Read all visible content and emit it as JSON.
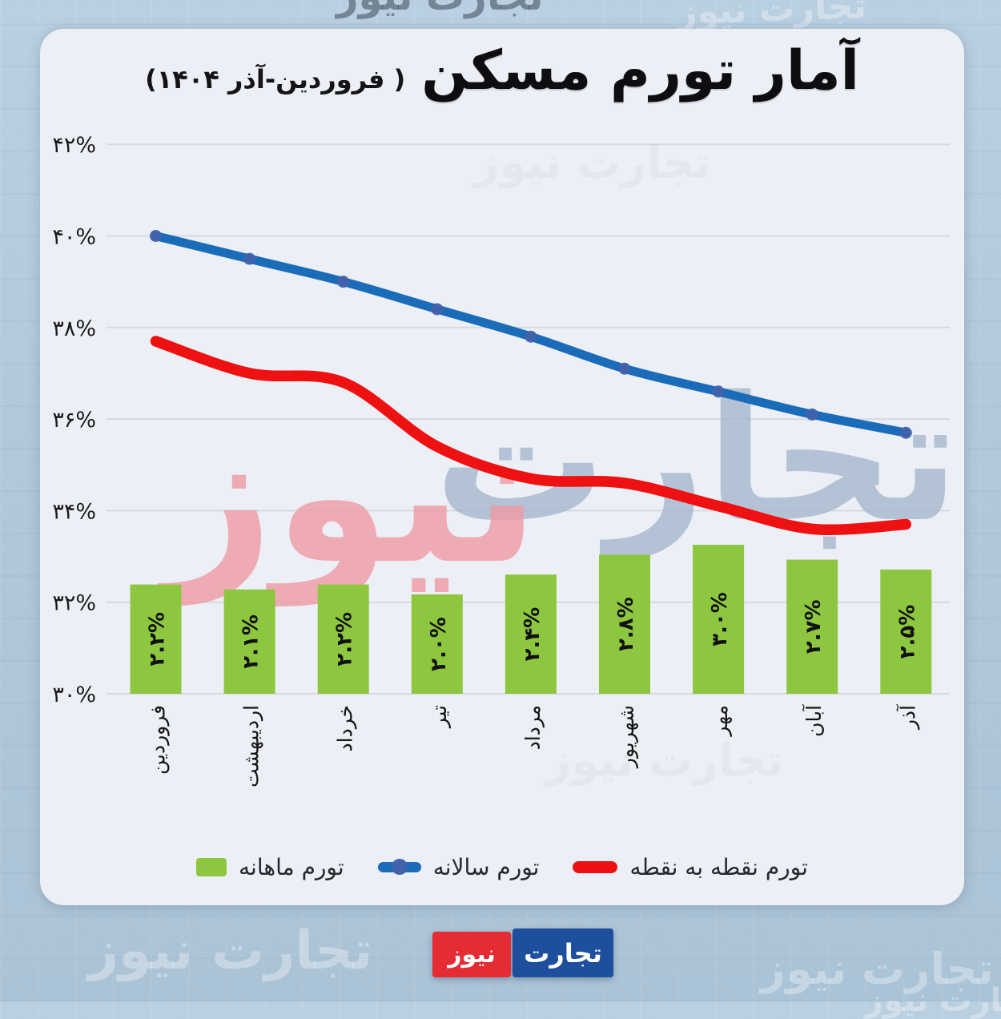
{
  "brand_watermark": "تجارت نیوز",
  "header": {
    "title": "آمار تورم مسکن",
    "subtitle": "( فروردین-آذر ۱۴۰۴)"
  },
  "watermark": {
    "right_word": "تجارت",
    "left_word": "نیوز"
  },
  "legend": {
    "items": [
      {
        "label": "تورم ماهانه",
        "type": "bar"
      },
      {
        "label": "تورم سالانه",
        "type": "line-with-marker"
      },
      {
        "label": "تورم نقطه به نقطه",
        "type": "line"
      }
    ]
  },
  "logo": {
    "blue_text": "تجارت",
    "red_text": "نیوز"
  },
  "colors": {
    "outer_background": "#b3c9db",
    "panel_background": "#edeff6",
    "grid": "#d6d9e0",
    "monthly_bar": "#8dc63f",
    "annual_line": "#1b6cb8",
    "annual_marker": "#4262ac",
    "point_to_point_line": "#ee1111",
    "watermark_pink": "#ef9ba4",
    "watermark_gray": "#a6b8cd",
    "logo_blue": "#1d4f9c",
    "logo_red": "#e52b33",
    "text": "#1a1a1a"
  },
  "chart_data": {
    "type": "combo",
    "title": "آمار تورم مسکن ( فروردین-آذر ۱۴۰۴)",
    "categories": [
      "فروردین",
      "اردیبهشت",
      "خرداد",
      "تیر",
      "مرداد",
      "شهریور",
      "مهر",
      "آبان",
      "آذر"
    ],
    "series": [
      {
        "name": "تورم ماهانه",
        "type": "bar",
        "unit": "%",
        "values": [
          2.2,
          2.1,
          2.2,
          2.0,
          2.4,
          2.8,
          3.0,
          2.7,
          2.5
        ],
        "data_labels": [
          "۲.۲%",
          "۲.۱%",
          "۲.۲%",
          "۲.۰%",
          "۲.۴%",
          "۲.۸%",
          "۳.۰%",
          "۲.۷%",
          "۲.۵%"
        ]
      },
      {
        "name": "تورم سالانه",
        "type": "line",
        "unit": "%",
        "values": [
          40.0,
          39.5,
          39.0,
          38.4,
          37.8,
          37.1,
          36.6,
          36.1,
          35.7
        ]
      },
      {
        "name": "تورم نقطه به نقطه",
        "type": "line",
        "unit": "%",
        "values": [
          37.7,
          37.0,
          36.8,
          35.4,
          34.7,
          34.6,
          34.1,
          33.6,
          33.7
        ]
      }
    ],
    "y_axis": {
      "min": 30,
      "max": 42,
      "tick_values": [
        42,
        40,
        38,
        36,
        34,
        32,
        30
      ],
      "tick_labels": [
        "۴۲%",
        "۴۰%",
        "۳۸%",
        "۳۶%",
        "۳۴%",
        "۳۲%",
        "۳۰%"
      ]
    },
    "grid": true,
    "legend_position": "bottom"
  }
}
